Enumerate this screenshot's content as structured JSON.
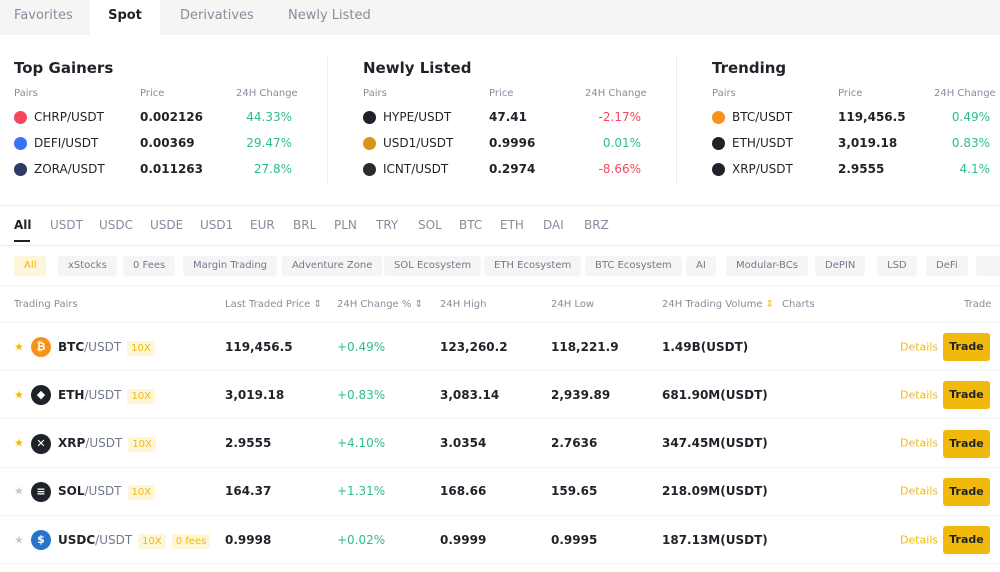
{
  "tabs": [
    "Favorites",
    "Spot",
    "Derivatives",
    "Newly Listed"
  ],
  "sections": [
    {
      "title": "Top Gainers",
      "headers": [
        "Pairs",
        "Price",
        "24H Change"
      ],
      "rows": [
        {
          "pair": "CHRP/USDT",
          "price": "0.002126",
          "change": "44.33%",
          "color": "#f6465d"
        },
        {
          "pair": "DEFI/USDT",
          "price": "0.00369",
          "change": "29.47%",
          "color": "#3773f5"
        },
        {
          "pair": "ZORA/USDT",
          "price": "0.011263",
          "change": "27.8%",
          "color": "#2b3a67"
        }
      ]
    },
    {
      "title": "Newly Listed",
      "headers": [
        "Pairs",
        "Price",
        "24H Change"
      ],
      "rows": [
        {
          "pair": "HYPE/USDT",
          "price": "47.41",
          "change": "-2.17%",
          "color": "#1e2329"
        },
        {
          "pair": "USD1/USDT",
          "price": "0.9996",
          "change": "0.01%",
          "color": "#d89614"
        },
        {
          "pair": "ICNT/USDT",
          "price": "0.2974",
          "change": "-8.66%",
          "color": "#2b2b2b"
        }
      ]
    },
    {
      "title": "Trending",
      "headers": [
        "Pairs",
        "Price",
        "24H Change"
      ],
      "rows": [
        {
          "pair": "BTC/USDT",
          "price": "119,456.5",
          "change": "0.49%",
          "color": "#f7931a"
        },
        {
          "pair": "ETH/USDT",
          "price": "3,019.18",
          "change": "0.83%",
          "color": "#1e2329"
        },
        {
          "pair": "XRP/USDT",
          "price": "2.9555",
          "change": "4.1%",
          "color": "#1e2329"
        }
      ]
    }
  ],
  "quote_tabs": [
    "All",
    "USDT",
    "USDC",
    "USDE",
    "USD1",
    "EUR",
    "BRL",
    "PLN",
    "TRY",
    "SOL",
    "BTC",
    "ETH",
    "DAI",
    "BRZ"
  ],
  "chips": [
    "All",
    "xStocks",
    "0 Fees",
    "Margin Trading",
    "Adventure Zone",
    "SOL Ecosystem",
    "ETH Ecosystem",
    "BTC Ecosystem",
    "AI",
    "Modular-BCs",
    "DePIN",
    "LSD",
    "DeFi"
  ],
  "table": {
    "headers": {
      "pairs": "Trading Pairs",
      "price": "Last Traded Price",
      "change": "24H Change %",
      "high": "24H High",
      "low": "24H Low",
      "volume": "24H Trading Volume",
      "charts": "Charts",
      "trade": "Trade"
    },
    "details_label": "Details",
    "trade_label": "Trade",
    "rows": [
      {
        "base": "BTC",
        "quote": "/USDT",
        "leverage": "10X",
        "fees": "",
        "price": "119,456.5",
        "change": "+0.49%",
        "high": "123,260.2",
        "low": "118,221.9",
        "volume": "1.49B(USDT)",
        "favorite": true,
        "color": "#f7931a",
        "glyph": "₿"
      },
      {
        "base": "ETH",
        "quote": "/USDT",
        "leverage": "10X",
        "fees": "",
        "price": "3,019.18",
        "change": "+0.83%",
        "high": "3,083.14",
        "low": "2,939.89",
        "volume": "681.90M(USDT)",
        "favorite": true,
        "color": "#1e2329",
        "glyph": "◆"
      },
      {
        "base": "XRP",
        "quote": "/USDT",
        "leverage": "10X",
        "fees": "",
        "price": "2.9555",
        "change": "+4.10%",
        "high": "3.0354",
        "low": "2.7636",
        "volume": "347.45M(USDT)",
        "favorite": true,
        "color": "#1e2329",
        "glyph": "✕"
      },
      {
        "base": "SOL",
        "quote": "/USDT",
        "leverage": "10X",
        "fees": "",
        "price": "164.37",
        "change": "+1.31%",
        "high": "168.66",
        "low": "159.65",
        "volume": "218.09M(USDT)",
        "favorite": false,
        "color": "#1e2329",
        "glyph": "≡"
      },
      {
        "base": "USDC",
        "quote": "/USDT",
        "leverage": "10X",
        "fees": "0 fees",
        "price": "0.9998",
        "change": "+0.02%",
        "high": "0.9999",
        "low": "0.9995",
        "volume": "187.13M(USDT)",
        "favorite": false,
        "color": "#2775ca",
        "glyph": "$"
      }
    ]
  }
}
